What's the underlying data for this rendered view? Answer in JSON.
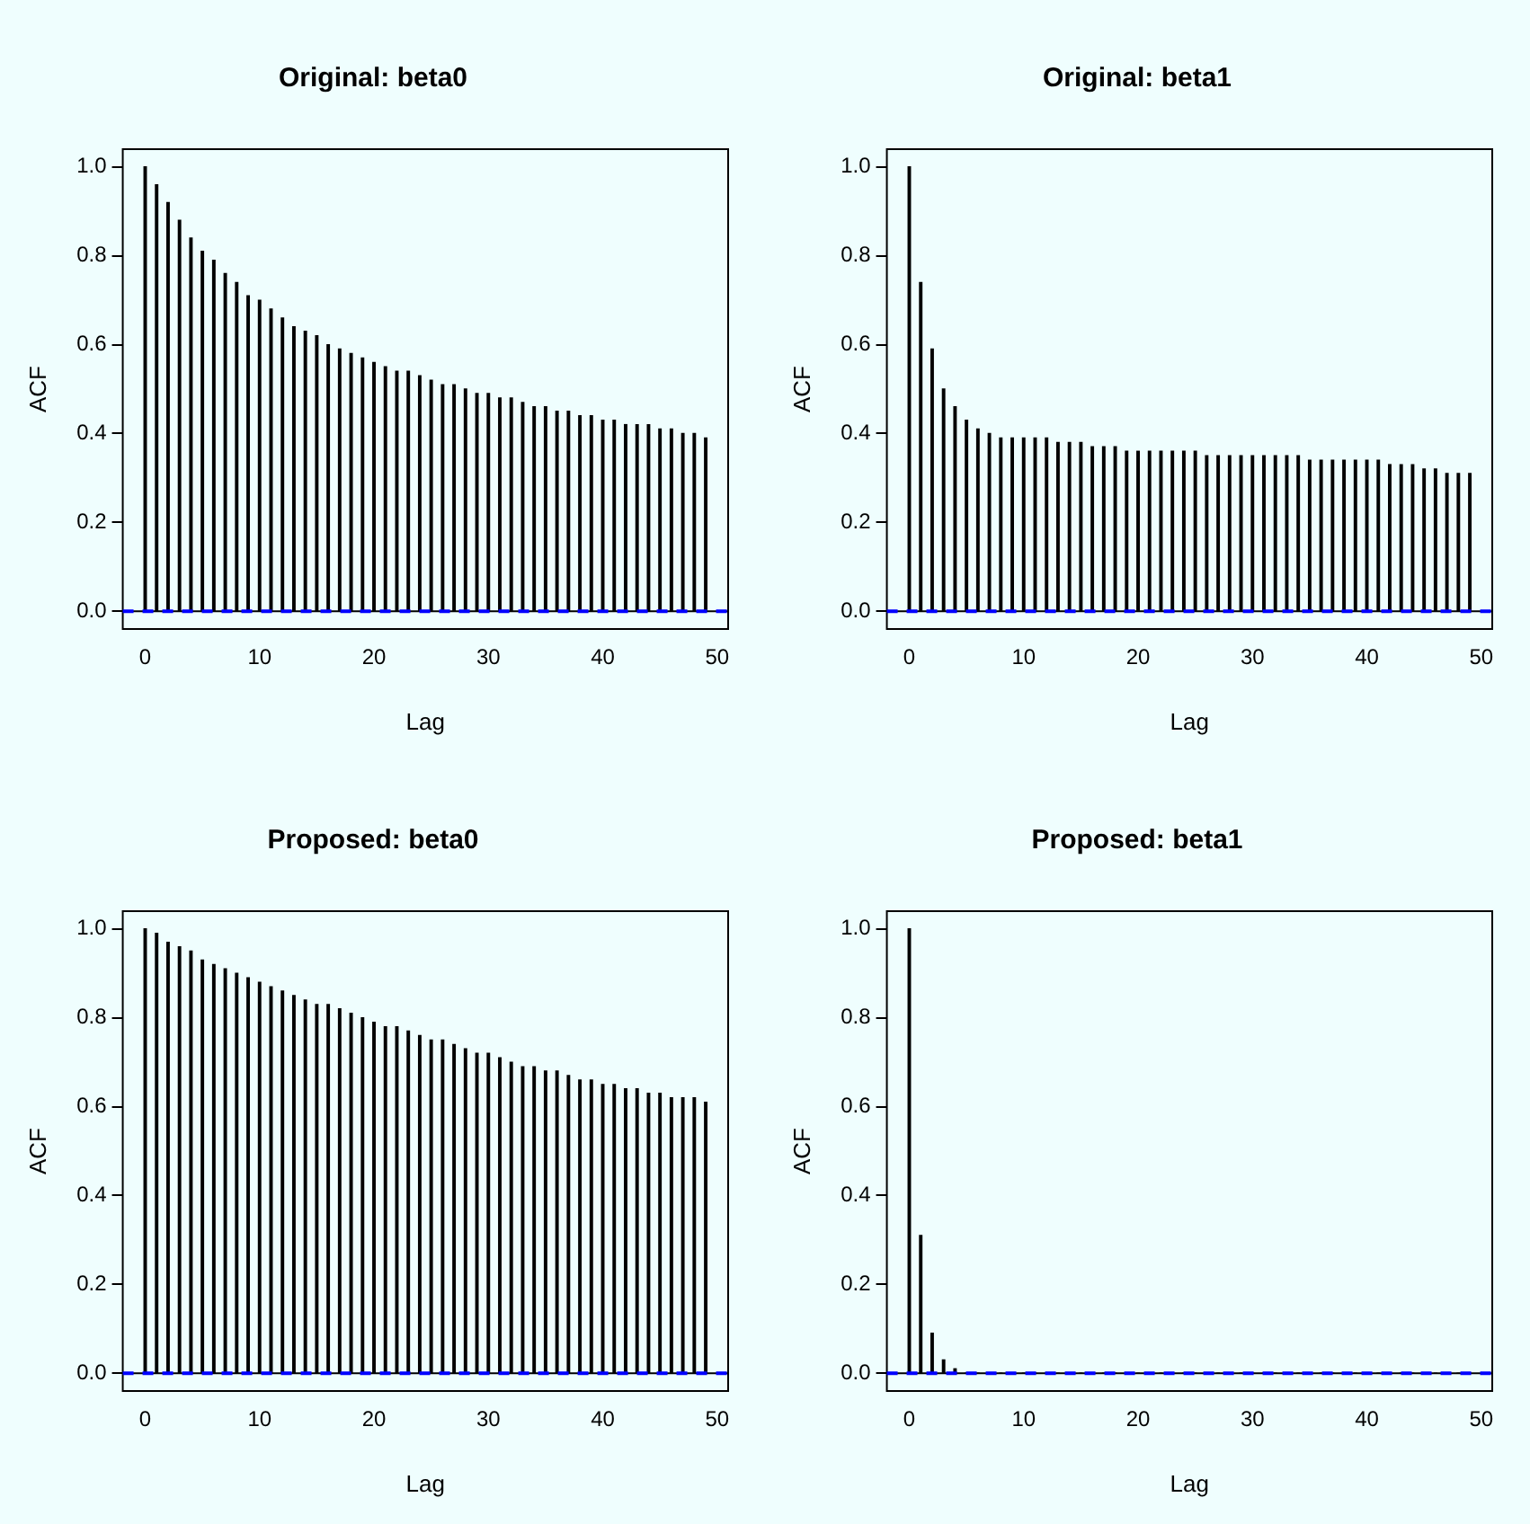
{
  "chart_data": [
    {
      "type": "bar",
      "title": "Original: beta0",
      "xlabel": "Lag",
      "ylabel": "ACF",
      "x": [
        0,
        1,
        2,
        3,
        4,
        5,
        6,
        7,
        8,
        9,
        10,
        11,
        12,
        13,
        14,
        15,
        16,
        17,
        18,
        19,
        20,
        21,
        22,
        23,
        24,
        25,
        26,
        27,
        28,
        29,
        30,
        31,
        32,
        33,
        34,
        35,
        36,
        37,
        38,
        39,
        40,
        41,
        42,
        43,
        44,
        45,
        46,
        47,
        48,
        49
      ],
      "series": [
        {
          "color": "#000000",
          "values": [
            1.0,
            0.96,
            0.92,
            0.88,
            0.84,
            0.81,
            0.79,
            0.76,
            0.74,
            0.71,
            0.7,
            0.68,
            0.66,
            0.64,
            0.63,
            0.62,
            0.6,
            0.59,
            0.58,
            0.57,
            0.56,
            0.55,
            0.54,
            0.54,
            0.53,
            0.52,
            0.51,
            0.51,
            0.5,
            0.49,
            0.49,
            0.48,
            0.48,
            0.47,
            0.46,
            0.46,
            0.45,
            0.45,
            0.44,
            0.44,
            0.43,
            0.43,
            0.42,
            0.42,
            0.42,
            0.41,
            0.41,
            0.4,
            0.4,
            0.39
          ]
        }
      ],
      "xlim": [
        -1.96,
        50.96
      ],
      "xticks": [
        0,
        10,
        20,
        30,
        40,
        50
      ],
      "ylim": [
        -0.04,
        1.04
      ],
      "yticks": [
        {
          "value": 0,
          "label": "0.0"
        },
        {
          "value": 0.2,
          "label": "0.2"
        },
        {
          "value": 0.4,
          "label": "0.4"
        },
        {
          "value": 0.6,
          "label": "0.6"
        },
        {
          "value": 0.8,
          "label": "0.8"
        },
        {
          "value": 1,
          "label": "1.0"
        }
      ],
      "ref_lines": [
        {
          "axis": "y",
          "value": 0,
          "color": "#000000",
          "line_style": "solid"
        },
        {
          "axis": "y",
          "value": 0,
          "color": "#0000ff",
          "line_style": "dashed"
        }
      ],
      "grid": false,
      "legend": false
    },
    {
      "type": "bar",
      "title": "Original: beta1",
      "xlabel": "Lag",
      "ylabel": "ACF",
      "x": [
        0,
        1,
        2,
        3,
        4,
        5,
        6,
        7,
        8,
        9,
        10,
        11,
        12,
        13,
        14,
        15,
        16,
        17,
        18,
        19,
        20,
        21,
        22,
        23,
        24,
        25,
        26,
        27,
        28,
        29,
        30,
        31,
        32,
        33,
        34,
        35,
        36,
        37,
        38,
        39,
        40,
        41,
        42,
        43,
        44,
        45,
        46,
        47,
        48,
        49
      ],
      "series": [
        {
          "color": "#000000",
          "values": [
            1.0,
            0.74,
            0.59,
            0.5,
            0.46,
            0.43,
            0.41,
            0.4,
            0.39,
            0.39,
            0.39,
            0.39,
            0.39,
            0.38,
            0.38,
            0.38,
            0.37,
            0.37,
            0.37,
            0.36,
            0.36,
            0.36,
            0.36,
            0.36,
            0.36,
            0.36,
            0.35,
            0.35,
            0.35,
            0.35,
            0.35,
            0.35,
            0.35,
            0.35,
            0.35,
            0.34,
            0.34,
            0.34,
            0.34,
            0.34,
            0.34,
            0.34,
            0.33,
            0.33,
            0.33,
            0.32,
            0.32,
            0.31,
            0.31,
            0.31
          ]
        }
      ],
      "xlim": [
        -1.96,
        50.96
      ],
      "xticks": [
        0,
        10,
        20,
        30,
        40,
        50
      ],
      "ylim": [
        -0.04,
        1.04
      ],
      "yticks": [
        {
          "value": 0,
          "label": "0.0"
        },
        {
          "value": 0.2,
          "label": "0.2"
        },
        {
          "value": 0.4,
          "label": "0.4"
        },
        {
          "value": 0.6,
          "label": "0.6"
        },
        {
          "value": 0.8,
          "label": "0.8"
        },
        {
          "value": 1,
          "label": "1.0"
        }
      ],
      "ref_lines": [
        {
          "axis": "y",
          "value": 0,
          "color": "#000000",
          "line_style": "solid"
        },
        {
          "axis": "y",
          "value": 0,
          "color": "#0000ff",
          "line_style": "dashed"
        }
      ],
      "grid": false,
      "legend": false
    },
    {
      "type": "bar",
      "title": "Proposed: beta0",
      "xlabel": "Lag",
      "ylabel": "ACF",
      "x": [
        0,
        1,
        2,
        3,
        4,
        5,
        6,
        7,
        8,
        9,
        10,
        11,
        12,
        13,
        14,
        15,
        16,
        17,
        18,
        19,
        20,
        21,
        22,
        23,
        24,
        25,
        26,
        27,
        28,
        29,
        30,
        31,
        32,
        33,
        34,
        35,
        36,
        37,
        38,
        39,
        40,
        41,
        42,
        43,
        44,
        45,
        46,
        47,
        48,
        49
      ],
      "series": [
        {
          "color": "#000000",
          "values": [
            1.0,
            0.99,
            0.97,
            0.96,
            0.95,
            0.93,
            0.92,
            0.91,
            0.9,
            0.89,
            0.88,
            0.87,
            0.86,
            0.85,
            0.84,
            0.83,
            0.83,
            0.82,
            0.81,
            0.8,
            0.79,
            0.78,
            0.78,
            0.77,
            0.76,
            0.75,
            0.75,
            0.74,
            0.73,
            0.72,
            0.72,
            0.71,
            0.7,
            0.69,
            0.69,
            0.68,
            0.68,
            0.67,
            0.66,
            0.66,
            0.65,
            0.65,
            0.64,
            0.64,
            0.63,
            0.63,
            0.62,
            0.62,
            0.62,
            0.61
          ]
        }
      ],
      "xlim": [
        -1.96,
        50.96
      ],
      "xticks": [
        0,
        10,
        20,
        30,
        40,
        50
      ],
      "ylim": [
        -0.04,
        1.04
      ],
      "yticks": [
        {
          "value": 0,
          "label": "0.0"
        },
        {
          "value": 0.2,
          "label": "0.2"
        },
        {
          "value": 0.4,
          "label": "0.4"
        },
        {
          "value": 0.6,
          "label": "0.6"
        },
        {
          "value": 0.8,
          "label": "0.8"
        },
        {
          "value": 1,
          "label": "1.0"
        }
      ],
      "ref_lines": [
        {
          "axis": "y",
          "value": 0,
          "color": "#000000",
          "line_style": "solid"
        },
        {
          "axis": "y",
          "value": 0,
          "color": "#0000ff",
          "line_style": "dashed"
        }
      ],
      "grid": false,
      "legend": false
    },
    {
      "type": "bar",
      "title": "Proposed: beta1",
      "xlabel": "Lag",
      "ylabel": "ACF",
      "x": [
        0,
        1,
        2,
        3,
        4,
        5,
        6,
        7,
        8,
        9,
        10,
        11,
        12,
        13,
        14,
        15,
        16,
        17,
        18,
        19,
        20,
        21,
        22,
        23,
        24,
        25,
        26,
        27,
        28,
        29,
        30,
        31,
        32,
        33,
        34,
        35,
        36,
        37,
        38,
        39,
        40,
        41,
        42,
        43,
        44,
        45,
        46,
        47,
        48,
        49
      ],
      "series": [
        {
          "color": "#000000",
          "values": [
            1.0,
            0.31,
            0.09,
            0.03,
            0.01,
            0,
            0,
            0,
            0,
            0,
            0,
            0,
            0,
            0,
            0,
            0,
            0,
            0,
            0,
            0,
            0,
            0,
            0,
            0,
            0,
            0,
            0,
            0,
            0,
            0,
            0,
            0,
            0,
            0,
            0,
            0,
            0,
            0,
            0,
            0,
            0,
            0,
            0,
            0,
            0,
            0,
            0,
            0,
            0,
            0
          ]
        }
      ],
      "xlim": [
        -1.96,
        50.96
      ],
      "xticks": [
        0,
        10,
        20,
        30,
        40,
        50
      ],
      "ylim": [
        -0.04,
        1.04
      ],
      "yticks": [
        {
          "value": 0,
          "label": "0.0"
        },
        {
          "value": 0.2,
          "label": "0.2"
        },
        {
          "value": 0.4,
          "label": "0.4"
        },
        {
          "value": 0.6,
          "label": "0.6"
        },
        {
          "value": 0.8,
          "label": "0.8"
        },
        {
          "value": 1,
          "label": "1.0"
        }
      ],
      "ref_lines": [
        {
          "axis": "y",
          "value": 0,
          "color": "#000000",
          "line_style": "solid"
        },
        {
          "axis": "y",
          "value": 0,
          "color": "#0000ff",
          "line_style": "dashed"
        }
      ],
      "grid": false,
      "legend": false
    }
  ]
}
